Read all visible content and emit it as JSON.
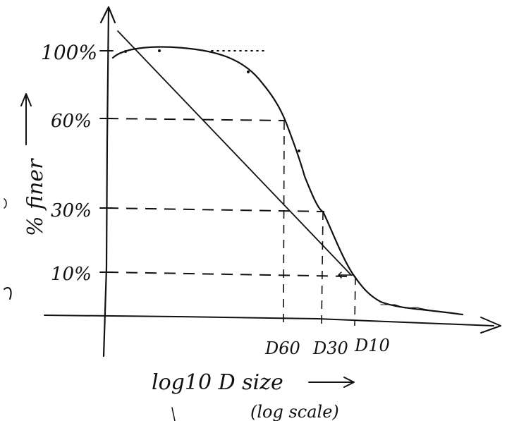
{
  "axes": {
    "y_ticks": [
      "100%",
      "60%",
      "30%",
      "10%"
    ],
    "x_markers": [
      "D60",
      "D30",
      "D10"
    ],
    "y_label": "% finer",
    "x_label": "log10 D size",
    "x_sublabel": "(log scale)"
  },
  "curve": {
    "type": "grain-size distribution",
    "levels_percent": [
      100,
      60,
      30,
      10
    ]
  }
}
